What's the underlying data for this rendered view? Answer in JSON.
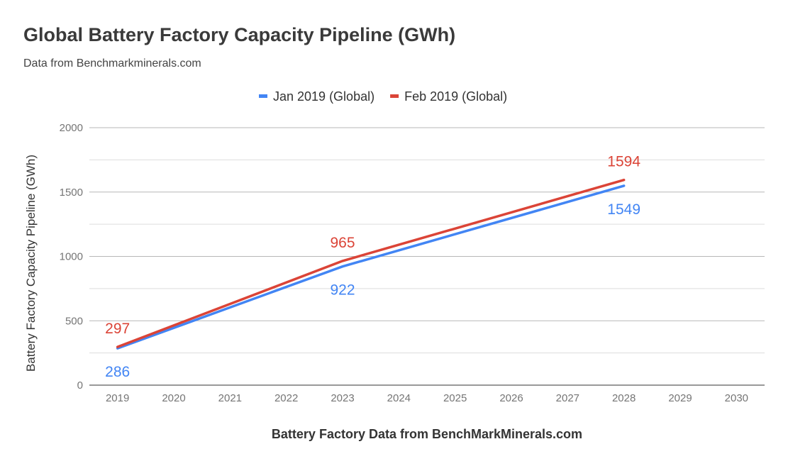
{
  "chart_data": {
    "type": "line",
    "title": "Global Battery Factory Capacity Pipeline (GWh)",
    "subtitle": "Data from Benchmarkminerals.com",
    "xlabel": "Battery Factory Data from BenchMarkMinerals.com",
    "ylabel": "Battery Factory Capacity Pipeline (GWh)",
    "categories": [
      "2019",
      "2020",
      "2021",
      "2022",
      "2023",
      "2024",
      "2025",
      "2026",
      "2027",
      "2028",
      "2029",
      "2030"
    ],
    "y_ticks": [
      0,
      500,
      1000,
      1500,
      2000
    ],
    "ylim": [
      0,
      2000
    ],
    "grid": true,
    "legend_position": "top",
    "series": [
      {
        "name": "Jan 2019 (Global)",
        "color": "#4285f4",
        "points": [
          {
            "x": "2019",
            "y": 286
          },
          {
            "x": "2023",
            "y": 922
          },
          {
            "x": "2028",
            "y": 1549
          }
        ],
        "labels": [
          {
            "x": "2019",
            "value": "286",
            "pos": "below"
          },
          {
            "x": "2023",
            "value": "922",
            "pos": "below"
          },
          {
            "x": "2028",
            "value": "1549",
            "pos": "below"
          }
        ]
      },
      {
        "name": "Feb 2019 (Global)",
        "color": "#db4437",
        "points": [
          {
            "x": "2019",
            "y": 297
          },
          {
            "x": "2023",
            "y": 965
          },
          {
            "x": "2028",
            "y": 1594
          }
        ],
        "labels": [
          {
            "x": "2019",
            "value": "297",
            "pos": "above"
          },
          {
            "x": "2023",
            "value": "965",
            "pos": "above"
          },
          {
            "x": "2028",
            "value": "1594",
            "pos": "above"
          }
        ]
      }
    ]
  }
}
